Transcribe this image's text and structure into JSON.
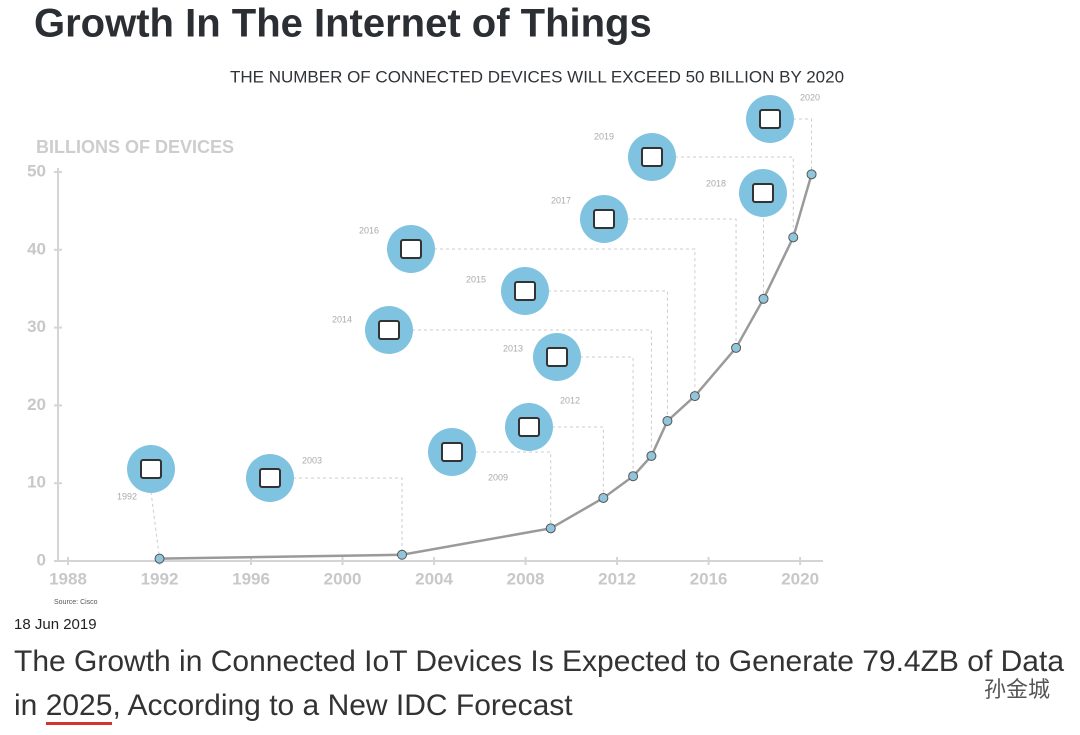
{
  "chart_data": {
    "type": "line",
    "title": "Growth In The Internet of Things",
    "subtitle": "THE NUMBER OF CONNECTED DEVICES WILL EXCEED 50 BILLION BY 2020",
    "y_label": "BILLIONS OF DEVICES",
    "source": "Source: Cisco",
    "x": [
      1992,
      2002.6,
      2009.1,
      2011.4,
      2012.7,
      2013.5,
      2014.2,
      2015.4,
      2017.2,
      2018.4,
      2019.7,
      2020.5
    ],
    "values": [
      0.3,
      0.8,
      4.2,
      8.1,
      10.9,
      13.5,
      18,
      21.2,
      27.4,
      33.7,
      41.6,
      49.7
    ],
    "color": "#9a9a9a",
    "xlim": [
      1988,
      2021
    ],
    "ylim": [
      0,
      50
    ],
    "xticks": [
      1988,
      1992,
      1996,
      2000,
      2004,
      2008,
      2012,
      2016,
      2020
    ],
    "yticks": [
      0,
      10,
      20,
      30,
      40,
      50
    ],
    "annotations": [
      "1992",
      "2003",
      "2009",
      "2012",
      "2013",
      "2014",
      "2015",
      "2016",
      "2017",
      "2018",
      "2019",
      "2020"
    ]
  },
  "date": "18 Jun 2019",
  "headline": {
    "parts": [
      "The Growth in Connected IoT Devices Is Expected to Generate 79.4ZB of Data in ",
      "2025",
      ", According to a New IDC Forecast"
    ]
  },
  "watermark": "孙金城"
}
